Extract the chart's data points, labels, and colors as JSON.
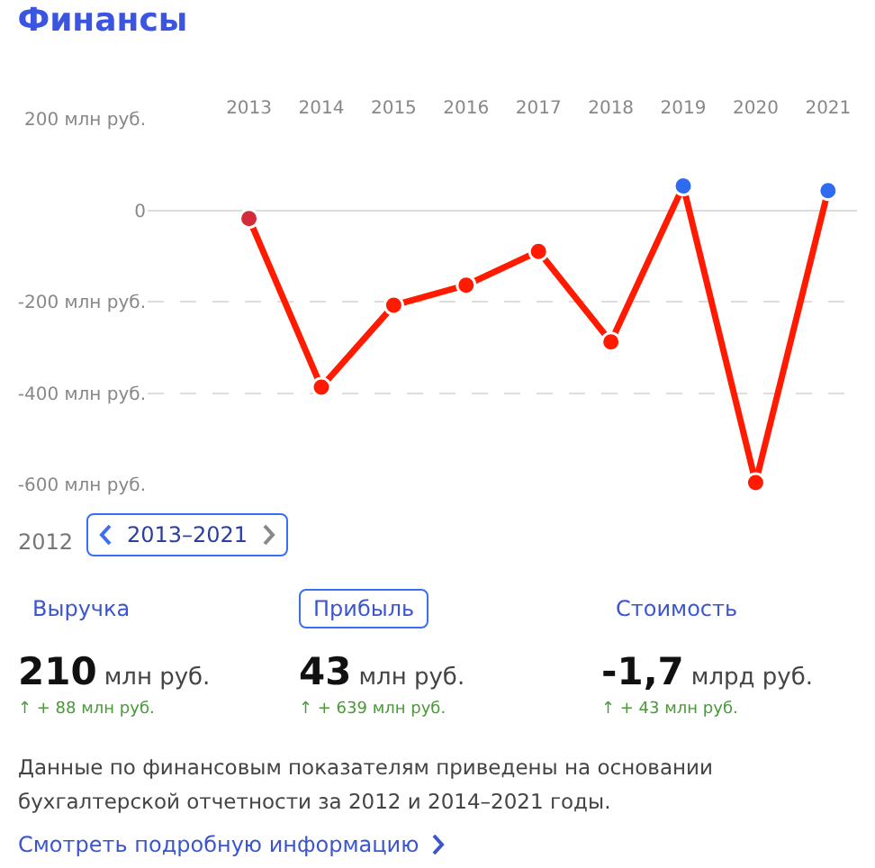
{
  "chart_data": {
    "type": "line",
    "title": "Финансы",
    "categories": [
      "2013",
      "2014",
      "2015",
      "2016",
      "2017",
      "2018",
      "2019",
      "2020",
      "2021"
    ],
    "series": [
      {
        "color": "#ff1a00",
        "colors": [
          "#d42a3a",
          "#ff1a00",
          "#ff1a00",
          "#ff1a00",
          "#ff1a00",
          "#ff1a00",
          "#2f6bf0",
          "#ff1a00",
          "#2f6bf0"
        ],
        "values": [
          -18,
          -387,
          -208,
          -164,
          -90,
          -288,
          53,
          -596,
          43
        ]
      }
    ],
    "ylim": [
      -600,
      200
    ],
    "yticks": [
      {
        "value": 200,
        "label": "200 млн руб."
      },
      {
        "value": 0,
        "label": "0"
      },
      {
        "value": -200,
        "label": "-200 млн руб."
      },
      {
        "value": -400,
        "label": "-400 млн руб."
      },
      {
        "value": -600,
        "label": "-600 млн руб."
      }
    ],
    "grid": "y",
    "marker": "circle",
    "line_style": "solid",
    "annotations": [
      "2012",
      "2013–2021",
      "Выручка",
      "Прибыль",
      "Стоимость",
      "210 млн руб.",
      "43 млн руб.",
      "-1,7 млрд руб.",
      "↑ + 88 млн руб.",
      "↑ + 639 млн руб.",
      "↑ + 43 млн руб.",
      "Данные по финансовым показателям приведены на основании бухгалтерской отчетности за 2012 и 2014–2021 годы.",
      "Смотреть подробную информацию"
    ]
  }
}
